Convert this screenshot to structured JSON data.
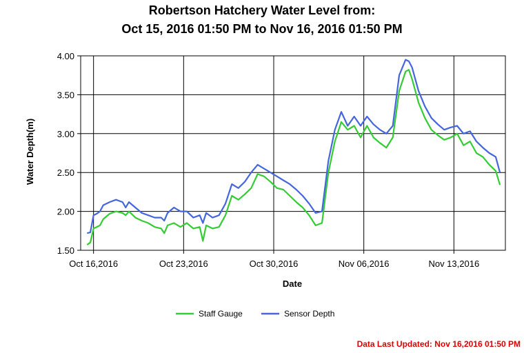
{
  "chart_data": {
    "type": "line",
    "title_lines": [
      "Robertson Hatchery Water Level from:",
      "Oct 15, 2016 01:50 PM to Nov 16, 2016 01:50 PM"
    ],
    "xlabel": "Date",
    "ylabel": "Water Depth(m)",
    "ylim": [
      1.5,
      4.0
    ],
    "yticks": [
      1.5,
      2.0,
      2.5,
      3.0,
      3.5,
      4.0
    ],
    "ytick_labels": [
      "1.50",
      "2.00",
      "2.50",
      "3.00",
      "3.50",
      "4.00"
    ],
    "xlim": [
      "2016-10-15",
      "2016-11-17"
    ],
    "xticks": [
      "2016-10-16",
      "2016-10-23",
      "2016-10-30",
      "2016-11-06",
      "2016-11-13"
    ],
    "xtick_labels": [
      "Oct 16,2016",
      "Oct 23,2016",
      "Oct 30,2016",
      "Nov 06,2016",
      "Nov 13,2016"
    ],
    "grid": true,
    "legend_position": "bottom-center",
    "series": [
      {
        "name": "Staff Gauge",
        "color": "#33cc33",
        "x": [
          "2016-10-15 12:00",
          "2016-10-15 18:00",
          "2016-10-16 00:00",
          "2016-10-16 06:00",
          "2016-10-16 12:00",
          "2016-10-16 18:00",
          "2016-10-17 06:00",
          "2016-10-17 18:00",
          "2016-10-18 06:00",
          "2016-10-18 12:00",
          "2016-10-18 18:00",
          "2016-10-19 06:00",
          "2016-10-19 18:00",
          "2016-10-20 06:00",
          "2016-10-20 18:00",
          "2016-10-21 06:00",
          "2016-10-21 12:00",
          "2016-10-21 18:00",
          "2016-10-22 06:00",
          "2016-10-22 18:00",
          "2016-10-23 06:00",
          "2016-10-23 18:00",
          "2016-10-24 06:00",
          "2016-10-24 12:00",
          "2016-10-24 18:00",
          "2016-10-25 06:00",
          "2016-10-25 18:00",
          "2016-10-26 06:00",
          "2016-10-26 18:00",
          "2016-10-27 06:00",
          "2016-10-27 18:00",
          "2016-10-28 06:00",
          "2016-10-28 18:00",
          "2016-10-29 06:00",
          "2016-10-29 18:00",
          "2016-10-30 06:00",
          "2016-10-30 18:00",
          "2016-10-31 06:00",
          "2016-10-31 18:00",
          "2016-11-01 06:00",
          "2016-11-01 18:00",
          "2016-11-02 06:00",
          "2016-11-02 18:00",
          "2016-11-03 06:00",
          "2016-11-03 18:00",
          "2016-11-04 06:00",
          "2016-11-04 18:00",
          "2016-11-05 06:00",
          "2016-11-05 18:00",
          "2016-11-06 06:00",
          "2016-11-06 18:00",
          "2016-11-07 06:00",
          "2016-11-07 18:00",
          "2016-11-08 06:00",
          "2016-11-08 18:00",
          "2016-11-09 06:00",
          "2016-11-09 12:00",
          "2016-11-09 18:00",
          "2016-11-10 06:00",
          "2016-11-10 18:00",
          "2016-11-11 06:00",
          "2016-11-11 18:00",
          "2016-11-12 06:00",
          "2016-11-12 18:00",
          "2016-11-13 06:00",
          "2016-11-13 18:00",
          "2016-11-14 06:00",
          "2016-11-14 18:00",
          "2016-11-15 06:00",
          "2016-11-15 18:00",
          "2016-11-16 06:00",
          "2016-11-16 13:50"
        ],
        "y": [
          1.57,
          1.6,
          1.78,
          1.8,
          1.82,
          1.9,
          1.97,
          2.0,
          1.98,
          1.95,
          2.0,
          1.92,
          1.88,
          1.85,
          1.8,
          1.78,
          1.72,
          1.82,
          1.85,
          1.8,
          1.85,
          1.78,
          1.8,
          1.62,
          1.82,
          1.78,
          1.8,
          1.95,
          2.2,
          2.15,
          2.22,
          2.3,
          2.48,
          2.45,
          2.38,
          2.3,
          2.28,
          2.2,
          2.12,
          2.05,
          1.95,
          1.82,
          1.85,
          2.5,
          2.9,
          3.15,
          3.05,
          3.1,
          2.95,
          3.1,
          2.95,
          2.88,
          2.82,
          2.95,
          3.55,
          3.8,
          3.82,
          3.7,
          3.4,
          3.2,
          3.05,
          2.98,
          2.92,
          2.95,
          3.0,
          2.85,
          2.9,
          2.75,
          2.7,
          2.6,
          2.52,
          2.34
        ]
      },
      {
        "name": "Sensor Depth",
        "color": "#4466dd",
        "x": [
          "2016-10-15 12:00",
          "2016-10-15 18:00",
          "2016-10-16 00:00",
          "2016-10-16 06:00",
          "2016-10-16 12:00",
          "2016-10-16 18:00",
          "2016-10-17 06:00",
          "2016-10-17 18:00",
          "2016-10-18 06:00",
          "2016-10-18 12:00",
          "2016-10-18 18:00",
          "2016-10-19 06:00",
          "2016-10-19 18:00",
          "2016-10-20 06:00",
          "2016-10-20 18:00",
          "2016-10-21 06:00",
          "2016-10-21 12:00",
          "2016-10-21 18:00",
          "2016-10-22 06:00",
          "2016-10-22 18:00",
          "2016-10-23 06:00",
          "2016-10-23 18:00",
          "2016-10-24 06:00",
          "2016-10-24 12:00",
          "2016-10-24 18:00",
          "2016-10-25 06:00",
          "2016-10-25 18:00",
          "2016-10-26 06:00",
          "2016-10-26 18:00",
          "2016-10-27 06:00",
          "2016-10-27 18:00",
          "2016-10-28 06:00",
          "2016-10-28 18:00",
          "2016-10-29 06:00",
          "2016-10-29 18:00",
          "2016-10-30 06:00",
          "2016-10-30 18:00",
          "2016-10-31 06:00",
          "2016-10-31 18:00",
          "2016-11-01 06:00",
          "2016-11-01 18:00",
          "2016-11-02 06:00",
          "2016-11-02 18:00",
          "2016-11-03 06:00",
          "2016-11-03 18:00",
          "2016-11-04 06:00",
          "2016-11-04 18:00",
          "2016-11-05 06:00",
          "2016-11-05 18:00",
          "2016-11-06 06:00",
          "2016-11-06 18:00",
          "2016-11-07 06:00",
          "2016-11-07 18:00",
          "2016-11-08 06:00",
          "2016-11-08 18:00",
          "2016-11-09 06:00",
          "2016-11-09 12:00",
          "2016-11-09 18:00",
          "2016-11-10 06:00",
          "2016-11-10 18:00",
          "2016-11-11 06:00",
          "2016-11-11 18:00",
          "2016-11-12 06:00",
          "2016-11-12 18:00",
          "2016-11-13 06:00",
          "2016-11-13 18:00",
          "2016-11-14 06:00",
          "2016-11-14 18:00",
          "2016-11-15 06:00",
          "2016-11-15 18:00",
          "2016-11-16 06:00",
          "2016-11-16 13:50"
        ],
        "y": [
          1.72,
          1.73,
          1.95,
          1.97,
          2.0,
          2.08,
          2.12,
          2.15,
          2.12,
          2.05,
          2.12,
          2.05,
          1.98,
          1.95,
          1.92,
          1.92,
          1.88,
          1.98,
          2.05,
          2.0,
          2.0,
          1.92,
          1.95,
          1.85,
          1.98,
          1.92,
          1.95,
          2.1,
          2.35,
          2.3,
          2.38,
          2.5,
          2.6,
          2.55,
          2.5,
          2.45,
          2.4,
          2.35,
          2.28,
          2.2,
          2.1,
          1.98,
          2.0,
          2.65,
          3.05,
          3.28,
          3.1,
          3.22,
          3.1,
          3.22,
          3.12,
          3.05,
          3.0,
          3.1,
          3.75,
          3.95,
          3.93,
          3.85,
          3.55,
          3.35,
          3.2,
          3.12,
          3.05,
          3.08,
          3.1,
          3.0,
          3.03,
          2.9,
          2.82,
          2.75,
          2.7,
          2.5
        ]
      }
    ]
  },
  "footer": {
    "label": "Data Last Updated: Nov 16,2016 01:50 PM",
    "color": "#dd0000"
  }
}
